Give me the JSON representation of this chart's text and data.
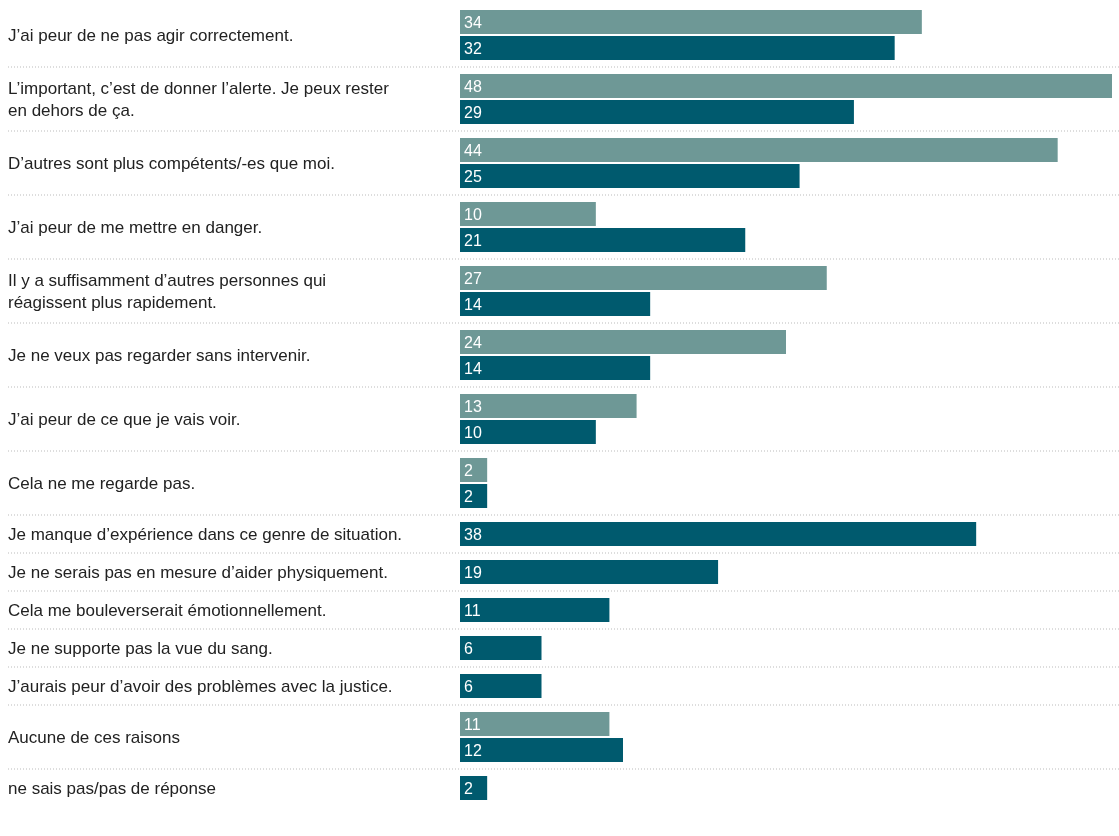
{
  "chart_data": {
    "type": "bar",
    "orientation": "horizontal",
    "data_labels": true,
    "grid": "y",
    "categories": [
      "J’ai peur de ne pas agir correctement.",
      "L’important, c’est de donner l’alerte. Je peux rester en dehors de ça.",
      "D’autres sont plus compétents/-es que moi.",
      "J’ai peur de me mettre en danger.",
      "Il y a suffisamment d’autres personnes qui réagissent plus rapidement.",
      "Je ne veux pas regarder sans intervenir.",
      "J’ai peur de ce que je vais voir.",
      "Cela ne me regarde pas.",
      "Je manque d’expérience dans ce genre de situation.",
      "Je ne serais pas en mesure d’aider physiquement.",
      "Cela me bouleverserait émotionnellement.",
      "Je ne supporte pas la vue du sang.",
      "J’aurais peur d’avoir des problèmes avec la justice.",
      "Aucune de ces raisons",
      "ne sais pas/pas de réponse"
    ],
    "series": [
      {
        "color": "#6e9896",
        "values": [
          34,
          48,
          44,
          10,
          27,
          24,
          13,
          2,
          null,
          null,
          null,
          null,
          null,
          11,
          null
        ]
      },
      {
        "color": "#005a6e",
        "values": [
          32,
          29,
          25,
          21,
          14,
          14,
          10,
          2,
          38,
          19,
          11,
          6,
          6,
          12,
          2
        ]
      }
    ]
  }
}
